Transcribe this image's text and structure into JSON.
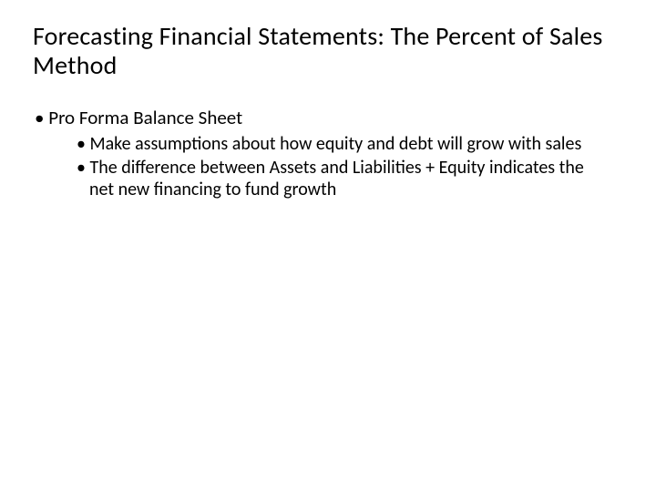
{
  "title": "Forecasting Financial Statements: The Percent of Sales Method",
  "bullets": {
    "l1": {
      "item1": "Pro Forma Balance Sheet"
    },
    "l2": {
      "item1": "Make assumptions about how equity and debt will grow with sales",
      "item2": "The difference between Assets and Liabilities + Equity indicates the net new financing to fund growth"
    }
  },
  "style": {
    "background_color": "#ffffff",
    "text_color": "#000000",
    "title_fontsize": 28,
    "l1_fontsize": 21,
    "l2_fontsize": 20,
    "font_family": "Calibri"
  }
}
